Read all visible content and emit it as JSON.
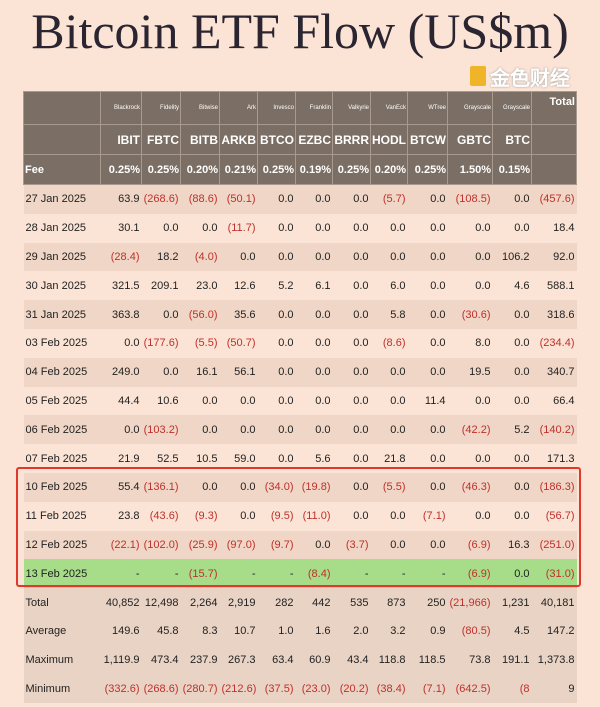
{
  "title": "Bitcoin ETF Flow (US$m)",
  "issuers": [
    "Blackrock",
    "Fidelity",
    "Bitwise",
    "Ark",
    "Invesco",
    "Franklin",
    "Valkyrie",
    "VanEck",
    "WTree",
    "Grayscale",
    "Grayscale"
  ],
  "total_label": "Total",
  "tickers": [
    "IBIT",
    "FBTC",
    "BITB",
    "ARKB",
    "BTCO",
    "EZBC",
    "BRRR",
    "HODL",
    "BTCW",
    "GBTC",
    "BTC"
  ],
  "fee_label": "Fee",
  "fees": [
    "0.25%",
    "0.25%",
    "0.20%",
    "0.21%",
    "0.25%",
    "0.19%",
    "0.25%",
    "0.20%",
    "0.25%",
    "1.50%",
    "0.15%"
  ],
  "rows": [
    {
      "date": "27 Jan 2025",
      "values": [
        "63.9",
        "(268.6)",
        "(88.6)",
        "(50.1)",
        "0.0",
        "0.0",
        "0.0",
        "(5.7)",
        "0.0",
        "(108.5)",
        "0.0",
        "(457.6)"
      ]
    },
    {
      "date": "28 Jan 2025",
      "values": [
        "30.1",
        "0.0",
        "0.0",
        "(11.7)",
        "0.0",
        "0.0",
        "0.0",
        "0.0",
        "0.0",
        "0.0",
        "0.0",
        "18.4"
      ]
    },
    {
      "date": "29 Jan 2025",
      "values": [
        "(28.4)",
        "18.2",
        "(4.0)",
        "0.0",
        "0.0",
        "0.0",
        "0.0",
        "0.0",
        "0.0",
        "0.0",
        "106.2",
        "92.0"
      ]
    },
    {
      "date": "30 Jan 2025",
      "values": [
        "321.5",
        "209.1",
        "23.0",
        "12.6",
        "5.2",
        "6.1",
        "0.0",
        "6.0",
        "0.0",
        "0.0",
        "4.6",
        "588.1"
      ]
    },
    {
      "date": "31 Jan 2025",
      "values": [
        "363.8",
        "0.0",
        "(56.0)",
        "35.6",
        "0.0",
        "0.0",
        "0.0",
        "5.8",
        "0.0",
        "(30.6)",
        "0.0",
        "318.6"
      ]
    },
    {
      "date": "03 Feb 2025",
      "values": [
        "0.0",
        "(177.6)",
        "(5.5)",
        "(50.7)",
        "0.0",
        "0.0",
        "0.0",
        "(8.6)",
        "0.0",
        "8.0",
        "0.0",
        "(234.4)"
      ]
    },
    {
      "date": "04 Feb 2025",
      "values": [
        "249.0",
        "0.0",
        "16.1",
        "56.1",
        "0.0",
        "0.0",
        "0.0",
        "0.0",
        "0.0",
        "19.5",
        "0.0",
        "340.7"
      ]
    },
    {
      "date": "05 Feb 2025",
      "values": [
        "44.4",
        "10.6",
        "0.0",
        "0.0",
        "0.0",
        "0.0",
        "0.0",
        "0.0",
        "11.4",
        "0.0",
        "0.0",
        "66.4"
      ]
    },
    {
      "date": "06 Feb 2025",
      "values": [
        "0.0",
        "(103.2)",
        "0.0",
        "0.0",
        "0.0",
        "0.0",
        "0.0",
        "0.0",
        "0.0",
        "(42.2)",
        "5.2",
        "(140.2)"
      ]
    },
    {
      "date": "07 Feb 2025",
      "values": [
        "21.9",
        "52.5",
        "10.5",
        "59.0",
        "0.0",
        "5.6",
        "0.0",
        "21.8",
        "0.0",
        "0.0",
        "0.0",
        "171.3"
      ]
    },
    {
      "date": "10 Feb 2025",
      "values": [
        "55.4",
        "(136.1)",
        "0.0",
        "0.0",
        "(34.0)",
        "(19.8)",
        "0.0",
        "(5.5)",
        "0.0",
        "(46.3)",
        "0.0",
        "(186.3)"
      ]
    },
    {
      "date": "11 Feb 2025",
      "values": [
        "23.8",
        "(43.6)",
        "(9.3)",
        "0.0",
        "(9.5)",
        "(11.0)",
        "0.0",
        "0.0",
        "(7.1)",
        "0.0",
        "0.0",
        "(56.7)"
      ]
    },
    {
      "date": "12 Feb 2025",
      "values": [
        "(22.1)",
        "(102.0)",
        "(25.9)",
        "(97.0)",
        "(9.7)",
        "0.0",
        "(3.7)",
        "0.0",
        "0.0",
        "(6.9)",
        "16.3",
        "(251.0)"
      ]
    },
    {
      "date": "13 Feb 2025",
      "today": true,
      "values": [
        "-",
        "-",
        "(15.7)",
        "-",
        "-",
        "(8.4)",
        "-",
        "-",
        "-",
        "(6.9)",
        "0.0",
        "(31.0)"
      ]
    }
  ],
  "summary": [
    {
      "label": "Total",
      "values": [
        "40,852",
        "12,498",
        "2,264",
        "2,919",
        "282",
        "442",
        "535",
        "873",
        "250",
        "(21,966)",
        "1,231",
        "40,181"
      ]
    },
    {
      "label": "Average",
      "values": [
        "149.6",
        "45.8",
        "8.3",
        "10.7",
        "1.0",
        "1.6",
        "2.0",
        "3.2",
        "0.9",
        "(80.5)",
        "4.5",
        "147.2"
      ]
    },
    {
      "label": "Maximum",
      "values": [
        "1,119.9",
        "473.4",
        "237.9",
        "267.3",
        "63.4",
        "60.9",
        "43.4",
        "118.8",
        "118.5",
        "73.8",
        "191.1",
        "1,373.8"
      ]
    },
    {
      "label": "Minimum",
      "values": [
        "(332.6)",
        "(268.6)",
        "(280.7)",
        "(212.6)",
        "(37.5)",
        "(23.0)",
        "(20.2)",
        "(38.4)",
        "(7.1)",
        "(642.5)",
        "(8",
        "9"
      ]
    }
  ],
  "watermark": "金色财经"
}
